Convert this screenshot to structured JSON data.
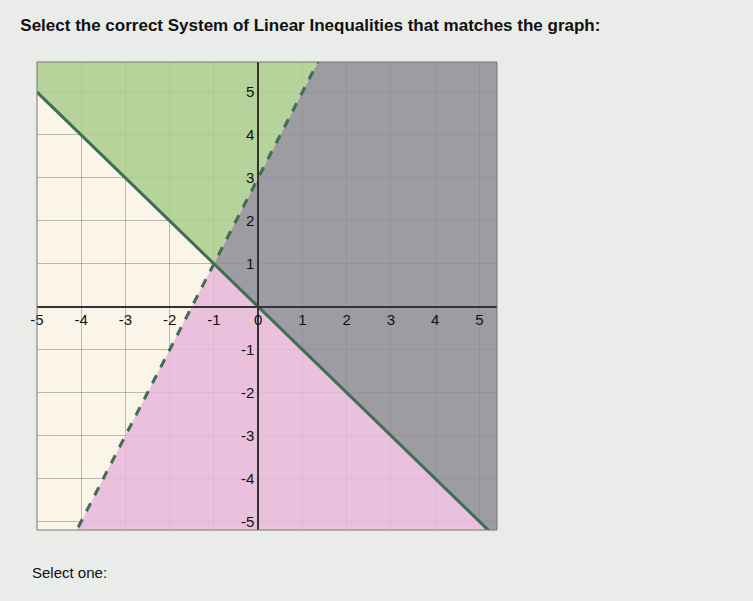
{
  "chart_data": {
    "type": "region",
    "title": "Select the correct System of Linear Inequalities that matches the graph:",
    "footer": "Select one:",
    "xlim": [
      -5,
      5.4
    ],
    "ylim": [
      -5.2,
      5.7
    ],
    "xticks": [
      -5,
      -4,
      -3,
      -2,
      -1,
      0,
      1,
      2,
      3,
      4,
      5
    ],
    "yticks": [
      -5,
      -4,
      -3,
      -2,
      -1,
      1,
      2,
      3,
      4,
      5
    ],
    "grid": true,
    "lines": [
      {
        "slope": -1,
        "intercept": 0,
        "line_style": "solid",
        "color": "#3f6e55"
      },
      {
        "slope": 2,
        "intercept": 3,
        "line_style": "dashed",
        "color": "#3f6e55"
      }
    ],
    "regions": [
      {
        "color": "#8c8c95",
        "conditions": [
          {
            "line": 0,
            "side": "above"
          },
          {
            "line": 1,
            "side": "below"
          }
        ]
      },
      {
        "color": "#e6b6da",
        "conditions": [
          {
            "line": 0,
            "side": "below"
          },
          {
            "line": 1,
            "side": "below"
          }
        ]
      },
      {
        "color": "#a9cd8d",
        "conditions": [
          {
            "line": 0,
            "side": "above"
          },
          {
            "line": 1,
            "side": "above"
          }
        ]
      }
    ]
  }
}
